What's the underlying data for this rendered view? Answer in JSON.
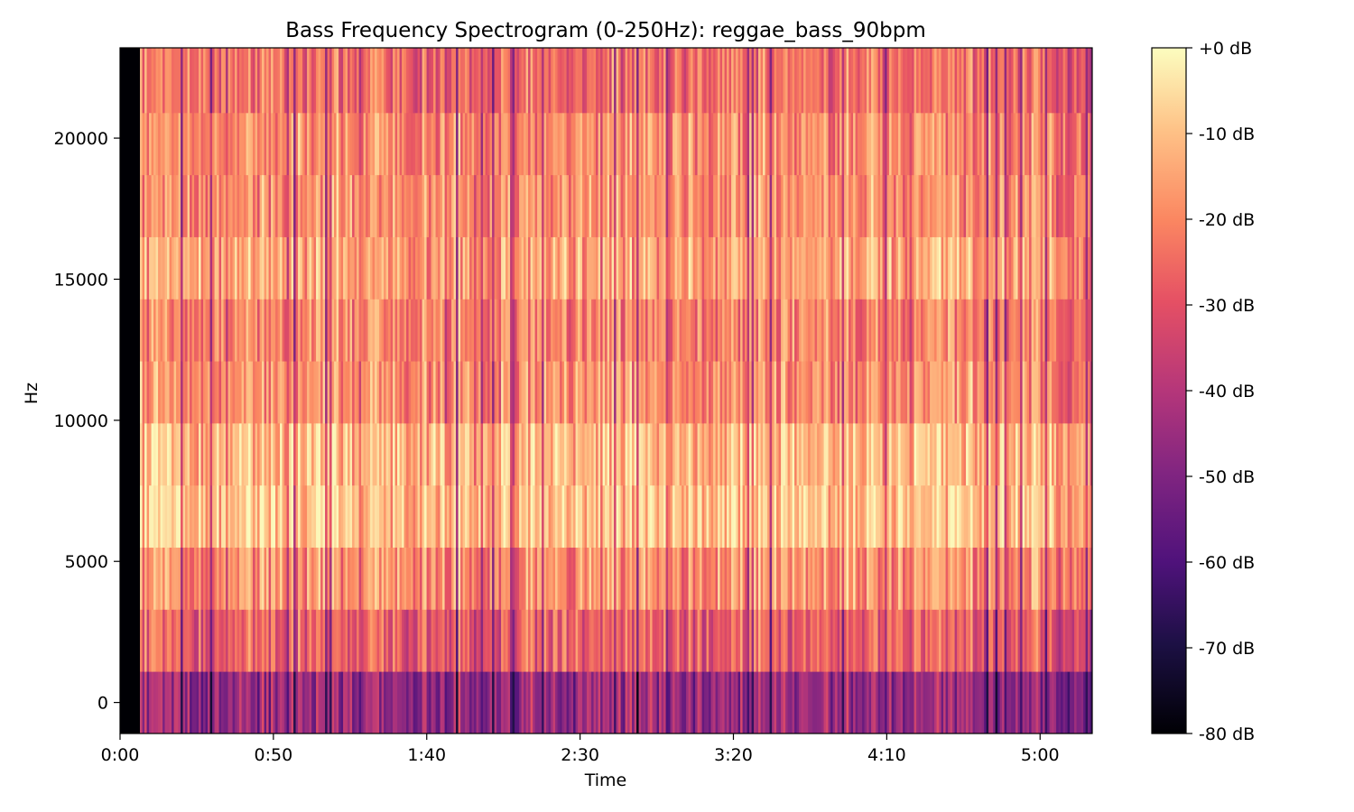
{
  "chart_data": {
    "type": "heatmap",
    "title": "Bass Frequency Spectrogram (0-250Hz): reggae_bass_90bpm",
    "xlabel": "Time",
    "ylabel": "Hz",
    "x_ticks": [
      {
        "label": "0:00",
        "seconds": 0
      },
      {
        "label": "0:50",
        "seconds": 50
      },
      {
        "label": "1:40",
        "seconds": 100
      },
      {
        "label": "2:30",
        "seconds": 150
      },
      {
        "label": "3:20",
        "seconds": 200
      },
      {
        "label": "4:10",
        "seconds": 250
      },
      {
        "label": "5:00",
        "seconds": 300
      }
    ],
    "xlim_seconds": [
      0,
      317
    ],
    "y_ticks": [
      {
        "label": "0",
        "value": 0
      },
      {
        "label": "5000",
        "value": 5000
      },
      {
        "label": "10000",
        "value": 10000
      },
      {
        "label": "15000",
        "value": 15000
      },
      {
        "label": "20000",
        "value": 20000
      }
    ],
    "ylim_hz": [
      -1100,
      23200
    ],
    "frequency_bands_hz": [
      0,
      2200,
      4400,
      6600,
      8800,
      11000,
      13200,
      15400,
      17600,
      19800,
      22000
    ],
    "band_mean_db": [
      -45,
      -27,
      -18,
      -9,
      -11,
      -18,
      -20,
      -15,
      -18,
      -19,
      -24
    ],
    "silent_until_seconds": 6.5,
    "colorbar": {
      "colormap": "magma",
      "ticks": [
        "+0 dB",
        "-10 dB",
        "-20 dB",
        "-30 dB",
        "-40 dB",
        "-50 dB",
        "-60 dB",
        "-70 dB",
        "-80 dB"
      ],
      "range_db": [
        -80,
        0
      ]
    }
  }
}
